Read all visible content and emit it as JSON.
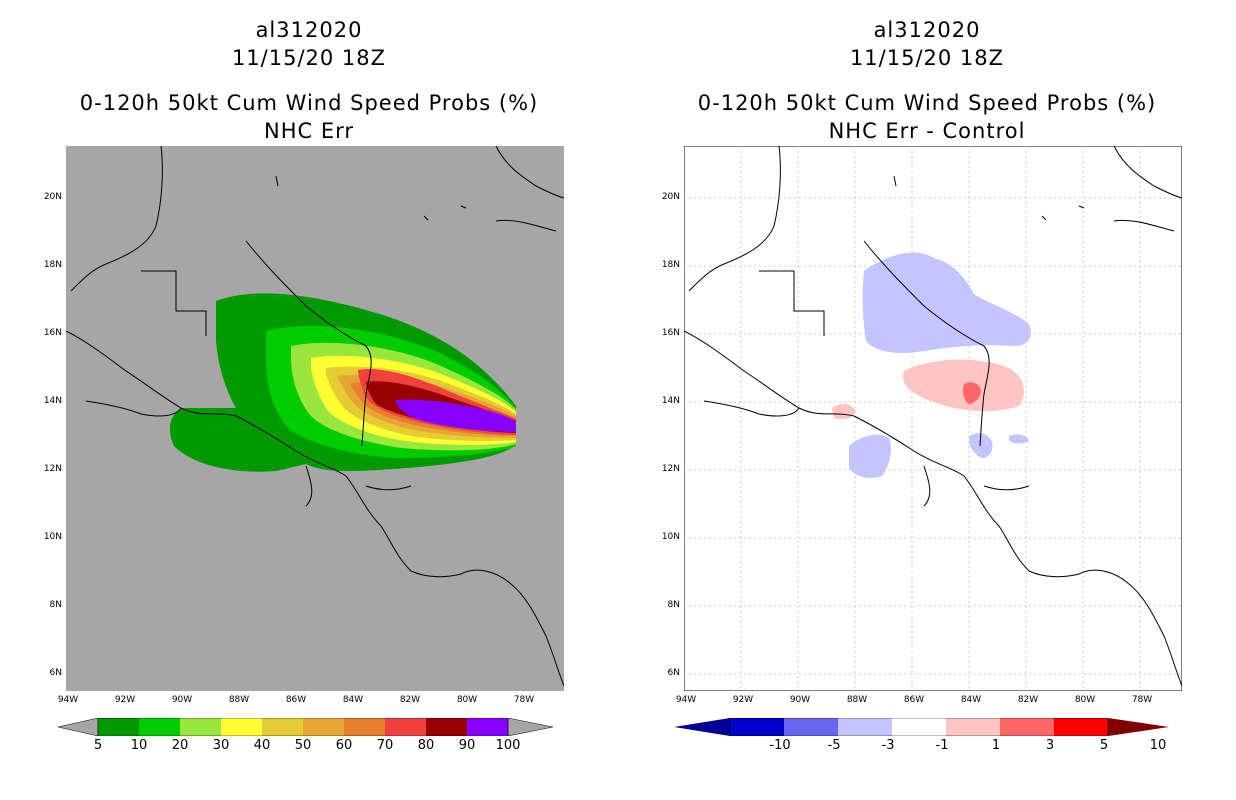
{
  "left": {
    "storm_id": "al312020",
    "datetime": "11/15/20 18Z",
    "product": "0-120h 50kt Cum Wind Speed Probs (%)",
    "subtitle": "NHC Err",
    "background_color": "#a6a6a6",
    "colorbar": {
      "labels": [
        "5",
        "10",
        "20",
        "30",
        "40",
        "50",
        "60",
        "70",
        "80",
        "90",
        "100"
      ],
      "colors": [
        "#009900",
        "#00cc00",
        "#99e63d",
        "#ffff33",
        "#e6cc33",
        "#e6a633",
        "#e6802e",
        "#f04040",
        "#990000",
        "#8800ff"
      ],
      "end_color": "#a6a6a6"
    }
  },
  "right": {
    "storm_id": "al312020",
    "datetime": "11/15/20 18Z",
    "product": "0-120h 50kt Cum Wind Speed Probs (%)",
    "subtitle": "NHC Err - Control",
    "background_color": "#ffffff",
    "colorbar": {
      "labels": [
        "-10",
        "-5",
        "-3",
        "-1",
        "1",
        "3",
        "5",
        "10"
      ],
      "colors": [
        "#0000cc",
        "#6666ee",
        "#c4c4ff",
        "#ffffff",
        "#ffc4c4",
        "#ff6666",
        "#ff0000"
      ],
      "end_low": "#000099",
      "end_high": "#800000"
    }
  },
  "axes": {
    "lat_labels": [
      "20N",
      "18N",
      "16N",
      "14N",
      "12N",
      "10N",
      "8N",
      "6N"
    ],
    "lon_labels": [
      "94W",
      "92W",
      "90W",
      "88W",
      "86W",
      "84W",
      "82W",
      "80W",
      "78W"
    ]
  }
}
